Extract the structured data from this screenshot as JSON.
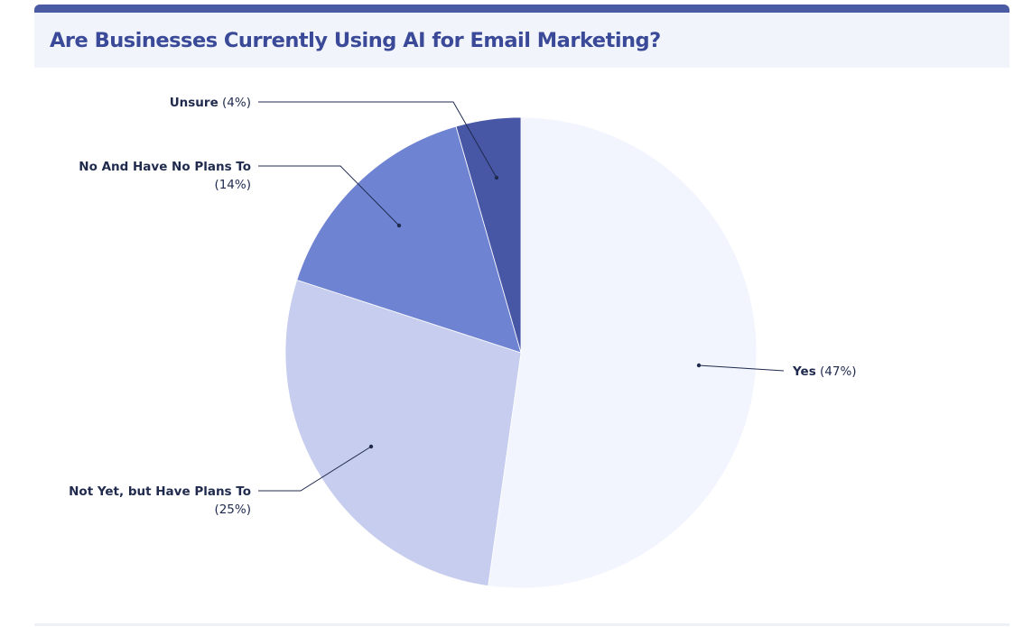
{
  "title": "Are Businesses Currently Using AI for Email Marketing?",
  "colors": {
    "accent_bar": "#4a5aa3",
    "header_bg": "#f1f4fa",
    "title_text": "#3a4a98",
    "label_text": "#1f2a4d",
    "leader_line": "#1f2a4d"
  },
  "chart_data": {
    "type": "pie",
    "title": "Are Businesses Currently Using AI for Email Marketing?",
    "slices": [
      {
        "name": "Yes",
        "pct_label": "(47%)",
        "value": 47,
        "color": "#f2f5fd"
      },
      {
        "name": "Not Yet, but Have Plans To",
        "pct_label": "(25%)",
        "value": 25,
        "color": "#c6cdee"
      },
      {
        "name": "No And Have No Plans To",
        "pct_label": "(14%)",
        "value": 14,
        "color": "#6f83d3"
      },
      {
        "name": "Unsure",
        "pct_label": "(4%)",
        "value": 4,
        "color": "#4757a6"
      }
    ],
    "legend": "none",
    "labels_outside": true
  }
}
